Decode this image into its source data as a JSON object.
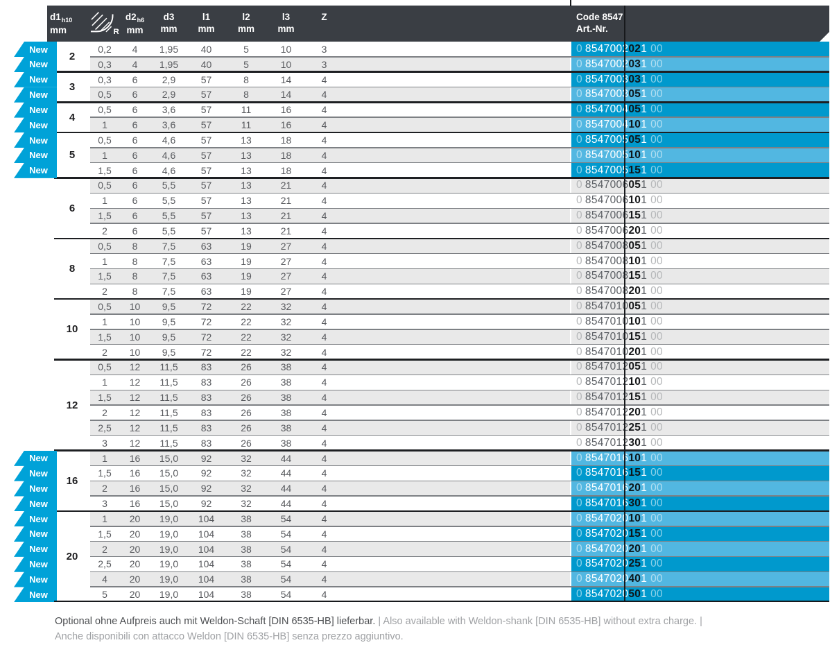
{
  "colors": {
    "accent_dark": "#0099cd",
    "accent_light": "#52b7e1",
    "badge": "#00a2d8",
    "header_bg": "#3a3e44",
    "zebra": "#e9e9e9"
  },
  "badge_label": "New",
  "header": {
    "d1": {
      "label": "d1",
      "sub": "h10",
      "unit": "mm"
    },
    "r": {
      "icon": "corner-radius-icon",
      "label": "R"
    },
    "d2": {
      "label": "d2",
      "sub": "h6",
      "unit": "mm"
    },
    "d3": {
      "label": "d3",
      "unit": "mm"
    },
    "l1": {
      "label": "l1",
      "unit": "mm"
    },
    "l2": {
      "label": "l2",
      "unit": "mm"
    },
    "l3": {
      "label": "l3",
      "unit": "mm"
    },
    "z": {
      "label": "Z"
    },
    "art": {
      "line1": "Code 8547",
      "line2": "Art.-Nr."
    }
  },
  "groups": [
    {
      "d1": "2",
      "new": true,
      "rows": [
        {
          "r": "0,2",
          "d2": "4",
          "d3": "1,95",
          "l1": "40",
          "l2": "5",
          "l3": "10",
          "z": "3",
          "art": [
            "0",
            "8547002",
            "02",
            "1",
            "00"
          ]
        },
        {
          "r": "0,3",
          "d2": "4",
          "d3": "1,95",
          "l1": "40",
          "l2": "5",
          "l3": "10",
          "z": "3",
          "art": [
            "0",
            "8547002",
            "03",
            "1",
            "00"
          ]
        }
      ]
    },
    {
      "d1": "3",
      "new": true,
      "rows": [
        {
          "r": "0,3",
          "d2": "6",
          "d3": "2,9",
          "l1": "57",
          "l2": "8",
          "l3": "14",
          "z": "4",
          "art": [
            "0",
            "8547003",
            "03",
            "1",
            "00"
          ]
        },
        {
          "r": "0,5",
          "d2": "6",
          "d3": "2,9",
          "l1": "57",
          "l2": "8",
          "l3": "14",
          "z": "4",
          "art": [
            "0",
            "8547003",
            "05",
            "1",
            "00"
          ]
        }
      ]
    },
    {
      "d1": "4",
      "new": true,
      "rows": [
        {
          "r": "0,5",
          "d2": "6",
          "d3": "3,6",
          "l1": "57",
          "l2": "11",
          "l3": "16",
          "z": "4",
          "art": [
            "0",
            "8547004",
            "05",
            "1",
            "00"
          ]
        },
        {
          "r": "1",
          "d2": "6",
          "d3": "3,6",
          "l1": "57",
          "l2": "11",
          "l3": "16",
          "z": "4",
          "art": [
            "0",
            "8547004",
            "10",
            "1",
            "00"
          ]
        }
      ]
    },
    {
      "d1": "5",
      "new": true,
      "rows": [
        {
          "r": "0,5",
          "d2": "6",
          "d3": "4,6",
          "l1": "57",
          "l2": "13",
          "l3": "18",
          "z": "4",
          "art": [
            "0",
            "8547005",
            "05",
            "1",
            "00"
          ]
        },
        {
          "r": "1",
          "d2": "6",
          "d3": "4,6",
          "l1": "57",
          "l2": "13",
          "l3": "18",
          "z": "4",
          "art": [
            "0",
            "8547005",
            "10",
            "1",
            "00"
          ]
        },
        {
          "r": "1,5",
          "d2": "6",
          "d3": "4,6",
          "l1": "57",
          "l2": "13",
          "l3": "18",
          "z": "4",
          "art": [
            "0",
            "8547005",
            "15",
            "1",
            "00"
          ]
        }
      ]
    },
    {
      "d1": "6",
      "new": false,
      "rows": [
        {
          "r": "0,5",
          "d2": "6",
          "d3": "5,5",
          "l1": "57",
          "l2": "13",
          "l3": "21",
          "z": "4",
          "art": [
            "0",
            "8547006",
            "05",
            "1",
            "00"
          ]
        },
        {
          "r": "1",
          "d2": "6",
          "d3": "5,5",
          "l1": "57",
          "l2": "13",
          "l3": "21",
          "z": "4",
          "art": [
            "0",
            "8547006",
            "10",
            "1",
            "00"
          ]
        },
        {
          "r": "1,5",
          "d2": "6",
          "d3": "5,5",
          "l1": "57",
          "l2": "13",
          "l3": "21",
          "z": "4",
          "art": [
            "0",
            "8547006",
            "15",
            "1",
            "00"
          ]
        },
        {
          "r": "2",
          "d2": "6",
          "d3": "5,5",
          "l1": "57",
          "l2": "13",
          "l3": "21",
          "z": "4",
          "art": [
            "0",
            "8547006",
            "20",
            "1",
            "00"
          ]
        }
      ]
    },
    {
      "d1": "8",
      "new": false,
      "rows": [
        {
          "r": "0,5",
          "d2": "8",
          "d3": "7,5",
          "l1": "63",
          "l2": "19",
          "l3": "27",
          "z": "4",
          "art": [
            "0",
            "8547008",
            "05",
            "1",
            "00"
          ]
        },
        {
          "r": "1",
          "d2": "8",
          "d3": "7,5",
          "l1": "63",
          "l2": "19",
          "l3": "27",
          "z": "4",
          "art": [
            "0",
            "8547008",
            "10",
            "1",
            "00"
          ]
        },
        {
          "r": "1,5",
          "d2": "8",
          "d3": "7,5",
          "l1": "63",
          "l2": "19",
          "l3": "27",
          "z": "4",
          "art": [
            "0",
            "8547008",
            "15",
            "1",
            "00"
          ]
        },
        {
          "r": "2",
          "d2": "8",
          "d3": "7,5",
          "l1": "63",
          "l2": "19",
          "l3": "27",
          "z": "4",
          "art": [
            "0",
            "8547008",
            "20",
            "1",
            "00"
          ]
        }
      ]
    },
    {
      "d1": "10",
      "new": false,
      "rows": [
        {
          "r": "0,5",
          "d2": "10",
          "d3": "9,5",
          "l1": "72",
          "l2": "22",
          "l3": "32",
          "z": "4",
          "art": [
            "0",
            "8547010",
            "05",
            "1",
            "00"
          ]
        },
        {
          "r": "1",
          "d2": "10",
          "d3": "9,5",
          "l1": "72",
          "l2": "22",
          "l3": "32",
          "z": "4",
          "art": [
            "0",
            "8547010",
            "10",
            "1",
            "00"
          ]
        },
        {
          "r": "1,5",
          "d2": "10",
          "d3": "9,5",
          "l1": "72",
          "l2": "22",
          "l3": "32",
          "z": "4",
          "art": [
            "0",
            "8547010",
            "15",
            "1",
            "00"
          ]
        },
        {
          "r": "2",
          "d2": "10",
          "d3": "9,5",
          "l1": "72",
          "l2": "22",
          "l3": "32",
          "z": "4",
          "art": [
            "0",
            "8547010",
            "20",
            "1",
            "00"
          ]
        }
      ]
    },
    {
      "d1": "12",
      "new": false,
      "rows": [
        {
          "r": "0,5",
          "d2": "12",
          "d3": "11,5",
          "l1": "83",
          "l2": "26",
          "l3": "38",
          "z": "4",
          "art": [
            "0",
            "8547012",
            "05",
            "1",
            "00"
          ]
        },
        {
          "r": "1",
          "d2": "12",
          "d3": "11,5",
          "l1": "83",
          "l2": "26",
          "l3": "38",
          "z": "4",
          "art": [
            "0",
            "8547012",
            "10",
            "1",
            "00"
          ]
        },
        {
          "r": "1,5",
          "d2": "12",
          "d3": "11,5",
          "l1": "83",
          "l2": "26",
          "l3": "38",
          "z": "4",
          "art": [
            "0",
            "8547012",
            "15",
            "1",
            "00"
          ]
        },
        {
          "r": "2",
          "d2": "12",
          "d3": "11,5",
          "l1": "83",
          "l2": "26",
          "l3": "38",
          "z": "4",
          "art": [
            "0",
            "8547012",
            "20",
            "1",
            "00"
          ]
        },
        {
          "r": "2,5",
          "d2": "12",
          "d3": "11,5",
          "l1": "83",
          "l2": "26",
          "l3": "38",
          "z": "4",
          "art": [
            "0",
            "8547012",
            "25",
            "1",
            "00"
          ]
        },
        {
          "r": "3",
          "d2": "12",
          "d3": "11,5",
          "l1": "83",
          "l2": "26",
          "l3": "38",
          "z": "4",
          "art": [
            "0",
            "8547012",
            "30",
            "1",
            "00"
          ]
        }
      ]
    },
    {
      "d1": "16",
      "new": true,
      "rows": [
        {
          "r": "1",
          "d2": "16",
          "d3": "15,0",
          "l1": "92",
          "l2": "32",
          "l3": "44",
          "z": "4",
          "art": [
            "0",
            "8547016",
            "10",
            "1",
            "00"
          ]
        },
        {
          "r": "1,5",
          "d2": "16",
          "d3": "15,0",
          "l1": "92",
          "l2": "32",
          "l3": "44",
          "z": "4",
          "art": [
            "0",
            "8547016",
            "15",
            "1",
            "00"
          ]
        },
        {
          "r": "2",
          "d2": "16",
          "d3": "15,0",
          "l1": "92",
          "l2": "32",
          "l3": "44",
          "z": "4",
          "art": [
            "0",
            "8547016",
            "20",
            "1",
            "00"
          ]
        },
        {
          "r": "3",
          "d2": "16",
          "d3": "15,0",
          "l1": "92",
          "l2": "32",
          "l3": "44",
          "z": "4",
          "art": [
            "0",
            "8547016",
            "30",
            "1",
            "00"
          ]
        }
      ]
    },
    {
      "d1": "20",
      "new": true,
      "rows": [
        {
          "r": "1",
          "d2": "20",
          "d3": "19,0",
          "l1": "104",
          "l2": "38",
          "l3": "54",
          "z": "4",
          "art": [
            "0",
            "8547020",
            "10",
            "1",
            "00"
          ]
        },
        {
          "r": "1,5",
          "d2": "20",
          "d3": "19,0",
          "l1": "104",
          "l2": "38",
          "l3": "54",
          "z": "4",
          "art": [
            "0",
            "8547020",
            "15",
            "1",
            "00"
          ]
        },
        {
          "r": "2",
          "d2": "20",
          "d3": "19,0",
          "l1": "104",
          "l2": "38",
          "l3": "54",
          "z": "4",
          "art": [
            "0",
            "8547020",
            "20",
            "1",
            "00"
          ]
        },
        {
          "r": "2,5",
          "d2": "20",
          "d3": "19,0",
          "l1": "104",
          "l2": "38",
          "l3": "54",
          "z": "4",
          "art": [
            "0",
            "8547020",
            "25",
            "1",
            "00"
          ]
        },
        {
          "r": "4",
          "d2": "20",
          "d3": "19,0",
          "l1": "104",
          "l2": "38",
          "l3": "54",
          "z": "4",
          "art": [
            "0",
            "8547020",
            "40",
            "1",
            "00"
          ]
        },
        {
          "r": "5",
          "d2": "20",
          "d3": "19,0",
          "l1": "104",
          "l2": "38",
          "l3": "54",
          "z": "4",
          "art": [
            "0",
            "8547020",
            "50",
            "1",
            "00"
          ]
        }
      ]
    }
  ],
  "footer": {
    "de": "Optional ohne Aufpreis auch mit Weldon-Schaft [DIN 6535-HB] lieferbar.",
    "en": " | Also available with Weldon-shank [DIN 6535-HB] without extra charge. |",
    "it": "Anche disponibili con attacco Weldon [DIN 6535-HB] senza prezzo aggiuntivo."
  }
}
